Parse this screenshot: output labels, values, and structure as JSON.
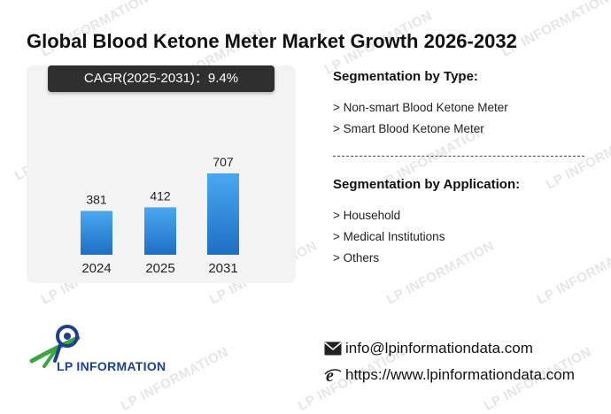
{
  "title": "Global Blood Ketone Meter Market Growth 2026-2032",
  "cagr_label": "CAGR(2025-2031)：9.4%",
  "chart_data": {
    "type": "bar",
    "categories": [
      "2024",
      "2025",
      "2031"
    ],
    "values": [
      381,
      412,
      707
    ],
    "data_labels": [
      "381",
      "412",
      "707"
    ],
    "title": "",
    "xlabel": "",
    "ylabel": "",
    "ylim": [
      0,
      707
    ],
    "grid": false,
    "bar_color_top": "#4aa8f0",
    "bar_color_bottom": "#1e6fc4"
  },
  "segmentation_type": {
    "heading": "Segmentation by Type:",
    "items": [
      "Non-smart Blood Ketone Meter",
      "Smart Blood Ketone Meter"
    ]
  },
  "segmentation_application": {
    "heading": "Segmentation by Application:",
    "items": [
      "Household",
      "Medical Institutions",
      "Others"
    ]
  },
  "logo": {
    "text": "LP INFORMATION",
    "icon": "lp-information-logo-icon"
  },
  "contact": {
    "email": "info@lpinformationdata.com",
    "email_icon": "envelope-icon",
    "website": "https://www.lpinformationdata.com",
    "website_icon": "browser-e-icon"
  },
  "watermark_text": "LP INFORMATION",
  "colors": {
    "navy": "#1f3f8f",
    "green": "#3aa640",
    "badge": "#2f2f2f"
  }
}
